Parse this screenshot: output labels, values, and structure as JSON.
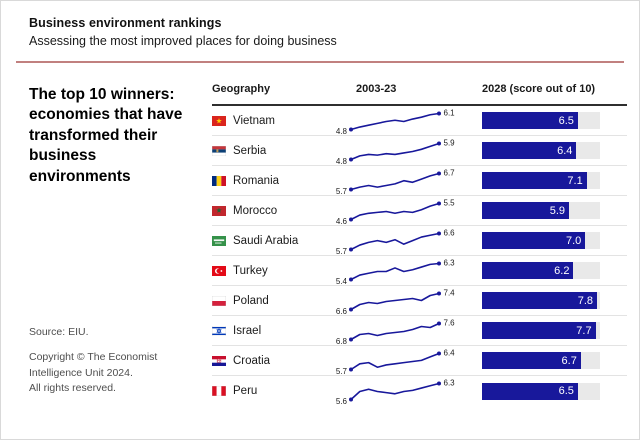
{
  "header": {
    "title": "Business environment rankings",
    "subtitle": "Assessing the most improved places for doing business"
  },
  "left_panel": {
    "heading": "The top 10 winners:\neconomies that have\ntransformed their\nbusiness environments",
    "source": "Source: EIU.",
    "copyright": "Copyright © The Economist\nIntelligence Unit 2024.\nAll rights reserved."
  },
  "table": {
    "columns": [
      "Geography",
      "2003-23",
      "2028 (score out of 10)"
    ]
  },
  "colors": {
    "navy": "#18189b",
    "accent_red": "#c1807f",
    "bar_track": "#e9e9e9"
  },
  "chart_data": {
    "type": "table",
    "title": "The top 10 winners: economies that have transformed their business environments",
    "columns": [
      "Geography",
      "2003-23",
      "2028 (score out of 10)"
    ],
    "sparkline_period": "2003-23",
    "bar_axis_max": 8,
    "score_out_of": 10,
    "rows": [
      {
        "geography": "Vietnam",
        "flag": "vietnam",
        "start_2003": 4.8,
        "end_2023": 6.1,
        "score_2028": 6.5,
        "spark": [
          4.8,
          5.0,
          5.15,
          5.3,
          5.45,
          5.55,
          5.45,
          5.65,
          5.8,
          6.0,
          6.1
        ]
      },
      {
        "geography": "Serbia",
        "flag": "serbia",
        "start_2003": 4.8,
        "end_2023": 5.9,
        "score_2028": 6.4,
        "spark": [
          4.8,
          5.05,
          5.15,
          5.1,
          5.2,
          5.15,
          5.25,
          5.35,
          5.5,
          5.7,
          5.9
        ]
      },
      {
        "geography": "Romania",
        "flag": "romania",
        "start_2003": 5.7,
        "end_2023": 6.7,
        "score_2028": 7.1,
        "spark": [
          5.7,
          5.85,
          5.95,
          5.85,
          5.95,
          6.05,
          6.25,
          6.15,
          6.35,
          6.55,
          6.7
        ]
      },
      {
        "geography": "Morocco",
        "flag": "morocco",
        "start_2003": 4.6,
        "end_2023": 5.5,
        "score_2028": 5.9,
        "spark": [
          4.6,
          4.85,
          4.95,
          5.0,
          5.05,
          4.95,
          5.05,
          5.0,
          5.15,
          5.35,
          5.5
        ]
      },
      {
        "geography": "Saudi Arabia",
        "flag": "saudi-arabia",
        "start_2003": 5.7,
        "end_2023": 6.6,
        "score_2028": 7.0,
        "spark": [
          5.7,
          5.95,
          6.1,
          6.2,
          6.1,
          6.25,
          6.0,
          6.2,
          6.4,
          6.5,
          6.6
        ]
      },
      {
        "geography": "Turkey",
        "flag": "turkey",
        "start_2003": 5.4,
        "end_2023": 6.3,
        "score_2028": 6.2,
        "spark": [
          5.4,
          5.65,
          5.75,
          5.85,
          5.85,
          6.05,
          5.85,
          5.95,
          6.1,
          6.25,
          6.3
        ]
      },
      {
        "geography": "Poland",
        "flag": "poland",
        "start_2003": 6.6,
        "end_2023": 7.4,
        "score_2028": 7.8,
        "spark": [
          6.6,
          6.85,
          6.95,
          6.9,
          7.0,
          7.05,
          7.1,
          7.15,
          7.05,
          7.3,
          7.4
        ]
      },
      {
        "geography": "Israel",
        "flag": "israel",
        "start_2003": 6.8,
        "end_2023": 7.6,
        "score_2028": 7.7,
        "spark": [
          6.8,
          7.05,
          7.1,
          7.0,
          7.1,
          7.15,
          7.2,
          7.3,
          7.45,
          7.4,
          7.6
        ]
      },
      {
        "geography": "Croatia",
        "flag": "croatia",
        "start_2003": 5.7,
        "end_2023": 6.4,
        "score_2028": 6.7,
        "spark": [
          5.7,
          5.95,
          6.0,
          5.8,
          5.9,
          5.95,
          6.0,
          6.05,
          6.1,
          6.25,
          6.4
        ]
      },
      {
        "geography": "Peru",
        "flag": "peru",
        "start_2003": 5.6,
        "end_2023": 6.3,
        "score_2028": 6.5,
        "spark": [
          5.6,
          5.95,
          6.05,
          5.95,
          5.9,
          5.85,
          5.95,
          6.0,
          6.1,
          6.2,
          6.3
        ]
      }
    ]
  }
}
